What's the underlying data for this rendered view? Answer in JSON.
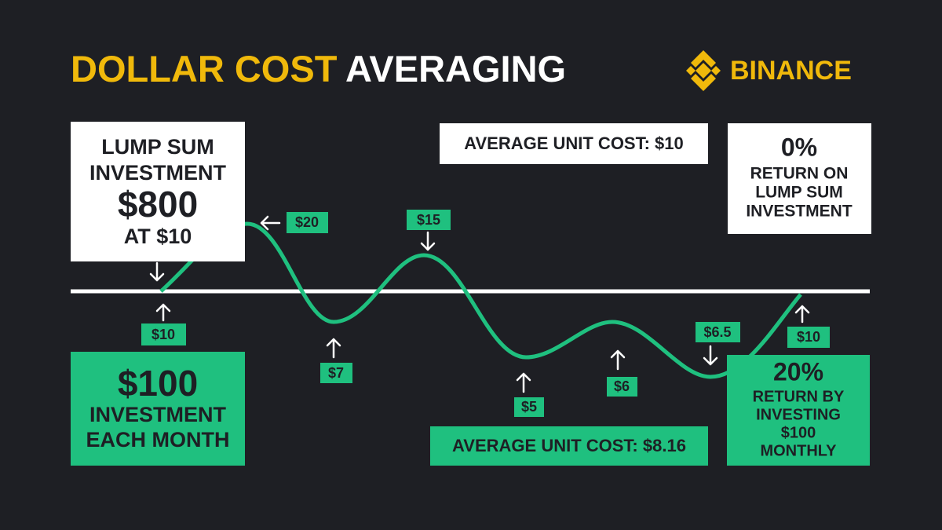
{
  "header": {
    "title_highlight": "DOLLAR COST",
    "title_rest": "AVERAGING",
    "logo": "BINANCE"
  },
  "lump_sum": {
    "lines": [
      "LUMP SUM",
      "INVESTMENT",
      "$800",
      "AT $10"
    ]
  },
  "lump_sum_average": "AVERAGE UNIT COST: $10",
  "lump_sum_return": {
    "lines": [
      "0%",
      "RETURN ON",
      "LUMP SUM",
      "INVESTMENT"
    ]
  },
  "monthly": {
    "lines": [
      "$100",
      "INVESTMENT",
      "EACH MONTH"
    ]
  },
  "monthly_average": "AVERAGE UNIT COST: $8.16",
  "monthly_return": {
    "lines": [
      "20%",
      "RETURN BY",
      "INVESTING",
      "$100",
      "MONTHLY"
    ]
  },
  "prices": [
    "$10",
    "$20",
    "$7",
    "$15",
    "$5",
    "$6",
    "$6.5",
    "$10"
  ]
}
